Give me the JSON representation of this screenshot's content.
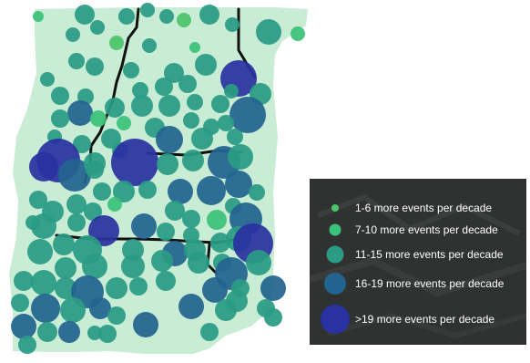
{
  "map": {
    "land_color": "#c8ecd4",
    "boundary_color": "#111111"
  },
  "legend": {
    "items": [
      {
        "label": "1-6 more events per decade",
        "color": "#4cc46a",
        "class": 1
      },
      {
        "label": "7-10 more events per decade",
        "color": "#3bc279",
        "class": 2
      },
      {
        "label": "11-15 more events per decade",
        "color": "#2a9b84",
        "class": 3
      },
      {
        "label": "16-19 more events per decade",
        "color": "#23648f",
        "class": 4
      },
      {
        "label": ">19 more events per decade",
        "color": "#2a31a0",
        "class": 5
      }
    ]
  }
}
